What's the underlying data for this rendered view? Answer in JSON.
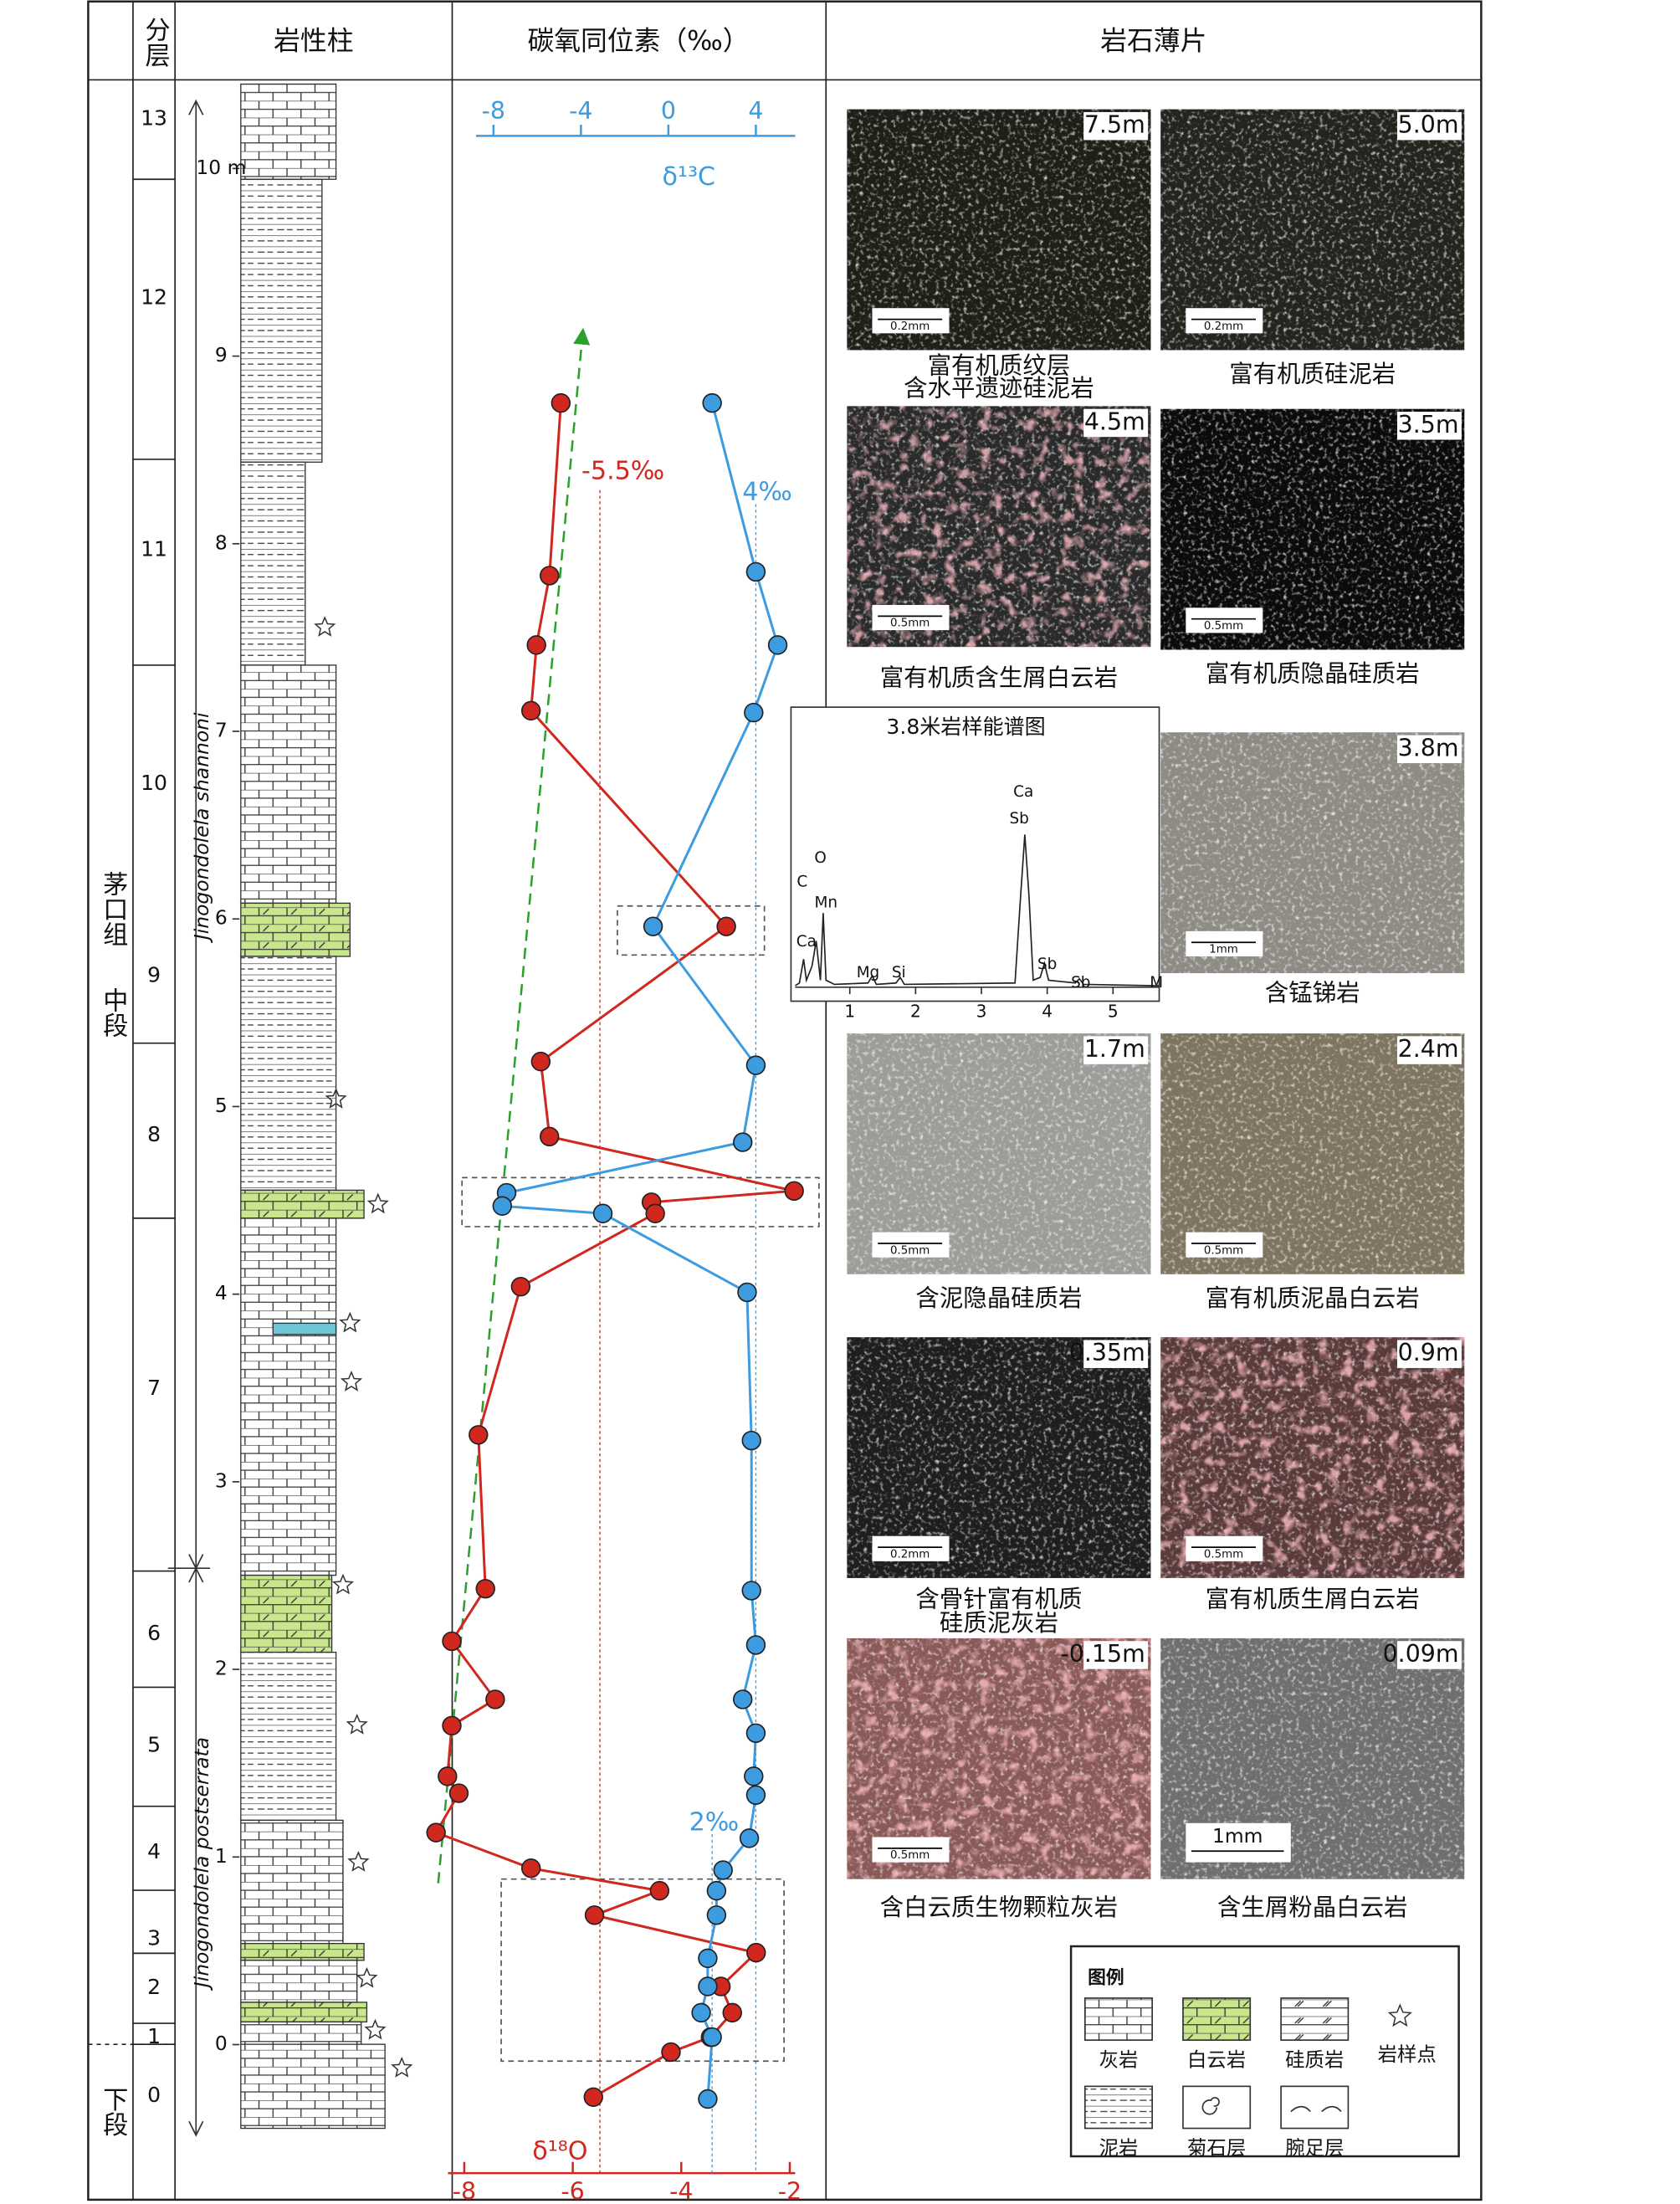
{
  "header": {
    "layer": "分层",
    "lithology": "岩性柱",
    "isotope": "碳氧同位素（‰）",
    "thin_section": "岩石薄片"
  },
  "formation": {
    "name": "茅口组",
    "middle": "中段",
    "lower": "下段"
  },
  "layers": [
    "13",
    "12",
    "11",
    "10",
    "9",
    "8",
    "7",
    "6",
    "5",
    "4",
    "3",
    "2",
    "1",
    "0"
  ],
  "biozones": [
    "Jinogondolela shannoni",
    "Jinogondolela postserrata"
  ],
  "chart_data": {
    "type": "line",
    "ylim": [
      -0.7,
      10.45
    ],
    "yticks": [
      0,
      1,
      2,
      3,
      4,
      5,
      6,
      7,
      8,
      9,
      {
        "value": 10,
        "label": "10 m"
      }
    ],
    "xlim": [
      -8.3,
      -1.9
    ],
    "xticks": [
      -8,
      -6,
      -4,
      -2
    ],
    "x_label": "δ¹⁸O",
    "x2lim": [
      -8.8,
      5.8
    ],
    "x2ticks": [
      -8,
      -4,
      0,
      4
    ],
    "x2_label": "δ¹³C",
    "series": [
      {
        "color": "#d0281e",
        "axis": "x",
        "x": [
          -6.22,
          -6.43,
          -6.67,
          -6.77,
          -3.17,
          -6.59,
          -6.43,
          -1.92,
          -4.55,
          -4.48,
          -6.96,
          -7.74,
          -7.61,
          -8.23,
          -7.43,
          -8.23,
          -8.31,
          -8.1,
          -8.52,
          -6.77,
          -4.4,
          -5.6,
          -2.62,
          -3.27,
          -3.06,
          -3.46,
          -4.19,
          -5.62
        ],
        "y": [
          8.75,
          7.83,
          7.46,
          7.11,
          5.96,
          5.24,
          4.84,
          4.55,
          4.49,
          4.43,
          4.04,
          3.25,
          2.43,
          2.15,
          1.84,
          1.7,
          1.43,
          1.34,
          1.13,
          0.94,
          0.82,
          0.69,
          0.49,
          0.31,
          0.17,
          0.04,
          -0.04,
          -0.28
        ]
      },
      {
        "color": "#3d9be0",
        "axis": "x2",
        "x": [
          2.0,
          4.0,
          5.0,
          3.9,
          -0.7,
          4.0,
          3.4,
          -7.4,
          -7.6,
          -3.0,
          3.6,
          3.8,
          3.8,
          4.0,
          3.4,
          4.0,
          3.9,
          4.0,
          3.7,
          2.5,
          2.2,
          2.2,
          1.8,
          1.8,
          1.5,
          2.0,
          1.8
        ],
        "y": [
          8.75,
          7.85,
          7.46,
          7.1,
          5.96,
          5.22,
          4.81,
          4.54,
          4.47,
          4.43,
          4.01,
          3.22,
          2.42,
          2.13,
          1.84,
          1.66,
          1.43,
          1.33,
          1.1,
          0.93,
          0.82,
          0.69,
          0.46,
          0.31,
          0.17,
          0.04,
          -0.29
        ]
      }
    ],
    "reference_lines": [
      {
        "axis": "x",
        "value": -5.5,
        "label": "-5.5‰",
        "color": "#d0281e"
      },
      {
        "axis": "x2",
        "value": 4,
        "label": "4‰",
        "color": "#3d9be0"
      },
      {
        "axis": "x2",
        "value": 2,
        "label": "2‰",
        "color": "#3d9be0"
      }
    ]
  },
  "eds": {
    "title": "3.8米岩样能谱图",
    "xticks": [
      1,
      2,
      3,
      4,
      5
    ],
    "peak_labels": [
      "C",
      "O",
      "Mn",
      "Ca",
      "Mg",
      "Si",
      "Ca",
      "Sb",
      "Sb",
      "Sb",
      "M"
    ]
  },
  "photos": [
    {
      "depth": "7.5m",
      "scale": "0.2mm",
      "caption": [
        "富有机质纹层",
        "含水平遗迹硅泥岩"
      ]
    },
    {
      "depth": "5.0m",
      "scale": "0.2mm",
      "caption": [
        "富有机质硅泥岩"
      ]
    },
    {
      "depth": "4.5m",
      "scale": "0.5mm",
      "caption": [
        "富有机质含生屑白云岩"
      ]
    },
    {
      "depth": "3.5m",
      "scale": "0.5mm",
      "caption": [
        "富有机质隐晶硅质岩"
      ]
    },
    {
      "depth": "3.8m",
      "scale": "1mm",
      "caption": [
        "含锰锑岩"
      ]
    },
    {
      "depth": "1.7m",
      "scale": "0.5mm",
      "caption": [
        "含泥隐晶硅质岩"
      ]
    },
    {
      "depth": "2.4m",
      "scale": "0.5mm",
      "caption": [
        "富有机质泥晶白云岩"
      ]
    },
    {
      "depth": "0.35m",
      "scale": "0.2mm",
      "caption": [
        "含骨针富有机质",
        "硅质泥灰岩"
      ]
    },
    {
      "depth": "0.9m",
      "scale": "0.5mm",
      "caption": [
        "富有机质生屑白云岩"
      ]
    },
    {
      "depth": "-0.15m",
      "scale": "0.5mm",
      "caption": [
        "含白云质生物颗粒灰岩"
      ]
    },
    {
      "depth": "0.09m",
      "scale": "1mm",
      "caption": [
        "含生屑粉晶白云岩"
      ]
    }
  ],
  "legend": {
    "title": "图例",
    "items": [
      "灰岩",
      "白云岩",
      "硅质岩",
      "泥岩",
      "菊石层",
      "腕足层",
      "岩样点"
    ]
  }
}
